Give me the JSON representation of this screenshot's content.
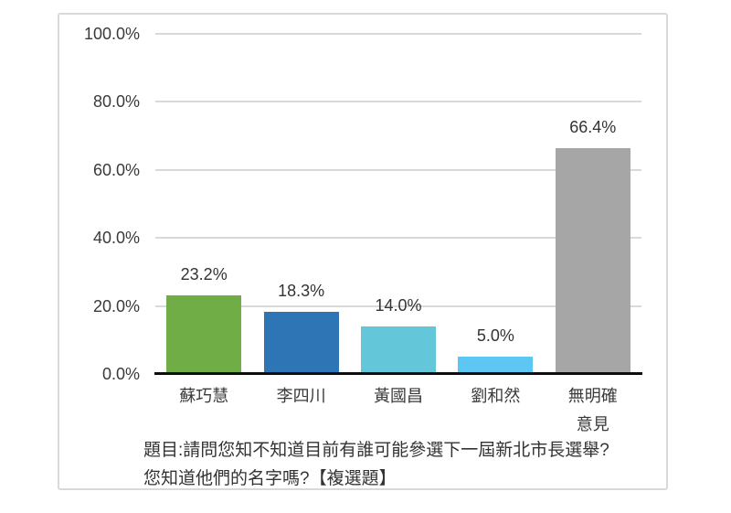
{
  "chart_data": {
    "type": "bar",
    "title": "",
    "categories": [
      "蘇巧慧",
      "李四川",
      "黃國昌",
      "劉和然",
      "無明確意見"
    ],
    "x_tick_labels": [
      "蘇巧慧",
      "李四川",
      "黃國昌",
      "劉和然",
      "無明確\n意見"
    ],
    "values": [
      23.2,
      18.3,
      14.0,
      5.0,
      66.4
    ],
    "value_labels": [
      "23.2%",
      "18.3%",
      "14.0%",
      "5.0%",
      "66.4%"
    ],
    "bar_colors": [
      "#70ad47",
      "#2e75b6",
      "#64c7d9",
      "#5ec6f2",
      "#a6a6a6"
    ],
    "y_axis": {
      "tick_labels": [
        "0.0%",
        "20.0%",
        "40.0%",
        "60.0%",
        "80.0%",
        "100.0%"
      ],
      "tick_values": [
        0,
        20,
        40,
        60,
        80,
        100
      ],
      "min": 0,
      "max": 100
    },
    "grid": true,
    "legend": false,
    "caption_line1": "題目:請問您知不知道目前有誰可能參選下一屆新北市長選舉?",
    "caption_line2": "您知道他們的名字嗎?【複選題】"
  },
  "colors": {
    "gridline": "#d9d9d9",
    "axis_line": "#0d0d0d",
    "text": "#3a3a3a",
    "panel_border": "#d9d9d9",
    "background": "#ffffff"
  }
}
